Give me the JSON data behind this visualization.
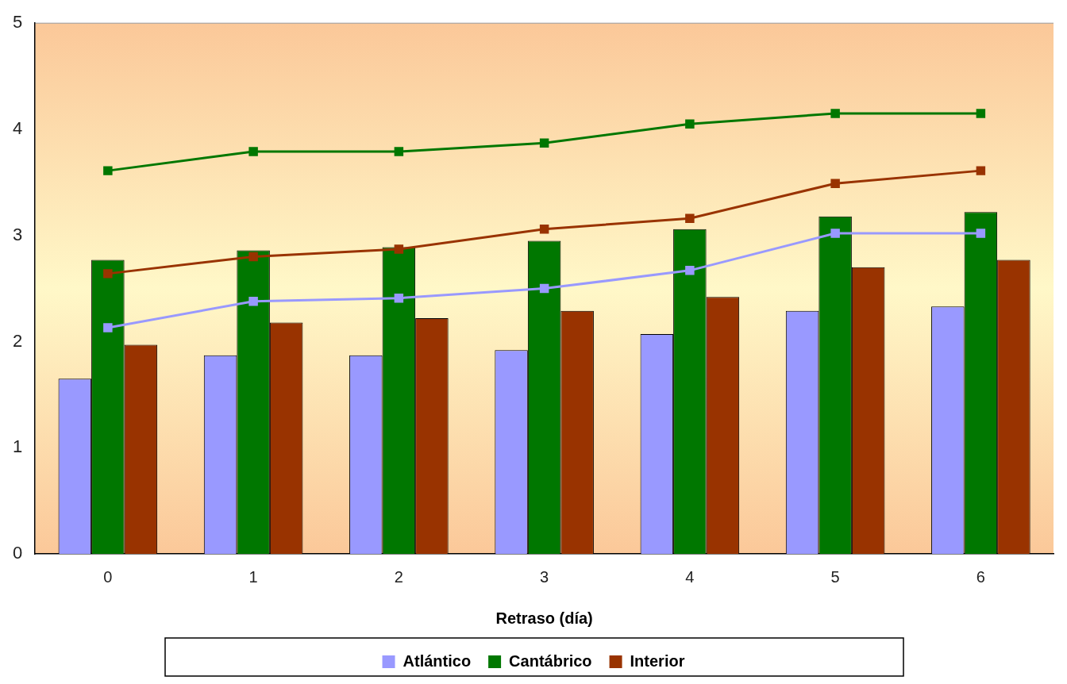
{
  "chart_data": {
    "type": "bar",
    "xlabel": "Retraso (día)",
    "categories": [
      "0",
      "1",
      "2",
      "3",
      "4",
      "5",
      "6"
    ],
    "series": [
      {
        "name": "Atlántico",
        "color": "#9999ff",
        "values": [
          1.65,
          1.87,
          1.87,
          1.92,
          2.07,
          2.29,
          2.33
        ]
      },
      {
        "name": "Cantábrico",
        "color": "#007700",
        "values": [
          2.77,
          2.86,
          2.89,
          2.95,
          3.06,
          3.18,
          3.22
        ]
      },
      {
        "name": "Interior",
        "color": "#993300",
        "values": [
          1.97,
          2.18,
          2.22,
          2.29,
          2.42,
          2.7,
          2.77
        ]
      },
      {
        "type": "line",
        "color": "#9999ff",
        "marker": "square",
        "values": [
          2.13,
          2.38,
          2.41,
          2.5,
          2.67,
          3.02,
          3.02
        ]
      },
      {
        "type": "line",
        "color": "#007700",
        "marker": "square",
        "values": [
          3.61,
          3.79,
          3.79,
          3.87,
          4.05,
          4.15,
          4.15
        ]
      },
      {
        "type": "line",
        "color": "#993300",
        "marker": "square",
        "values": [
          2.64,
          2.8,
          2.87,
          3.06,
          3.16,
          3.49,
          3.61
        ]
      }
    ],
    "ylim": [
      0,
      5
    ],
    "yticks": [
      0,
      1,
      2,
      3,
      4,
      5
    ],
    "legend": "bottom"
  }
}
